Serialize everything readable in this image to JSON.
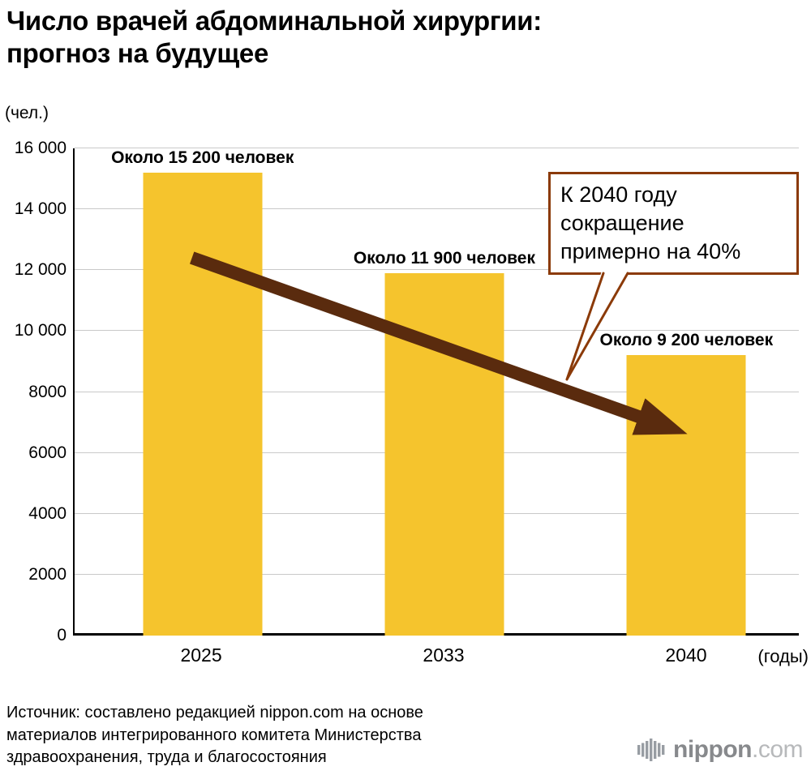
{
  "title": "Число врачей абдоминальной хирургии:\nпрогноз на будущее",
  "source": "Источник: составлено редакцией nippon.com на основе\nматериалов интегрированного комитета Министерства\nздравоохранения, труда и благосостояния",
  "logo": {
    "brand": "nippon",
    "suffix": ".com"
  },
  "chart_data": {
    "type": "bar",
    "title": "Число врачей абдоминальной хирургии: прогноз на будущее",
    "categories": [
      "2025",
      "2033",
      "2040"
    ],
    "values": [
      15200,
      11900,
      9200
    ],
    "bar_labels": [
      "Около 15 200 человек",
      "Около 11 900 человек",
      "Около 9 200 человек"
    ],
    "y_unit_label": "(чел.)",
    "x_unit_label": "(годы)",
    "ylim": [
      0,
      16000
    ],
    "ytick_interval": 2000,
    "ytick_labels": [
      "0",
      "2000",
      "4000",
      "6000",
      "8000",
      "10 000",
      "12 000",
      "14 000",
      "16 000"
    ],
    "grid": true,
    "legend": "none",
    "bar_color": "#f5c42d",
    "arrow_color": "#5a2b0e",
    "annotation": {
      "text": "К 2040 году\nсокращение\nпримерно на 40%",
      "border_color": "#8b3a08"
    }
  }
}
